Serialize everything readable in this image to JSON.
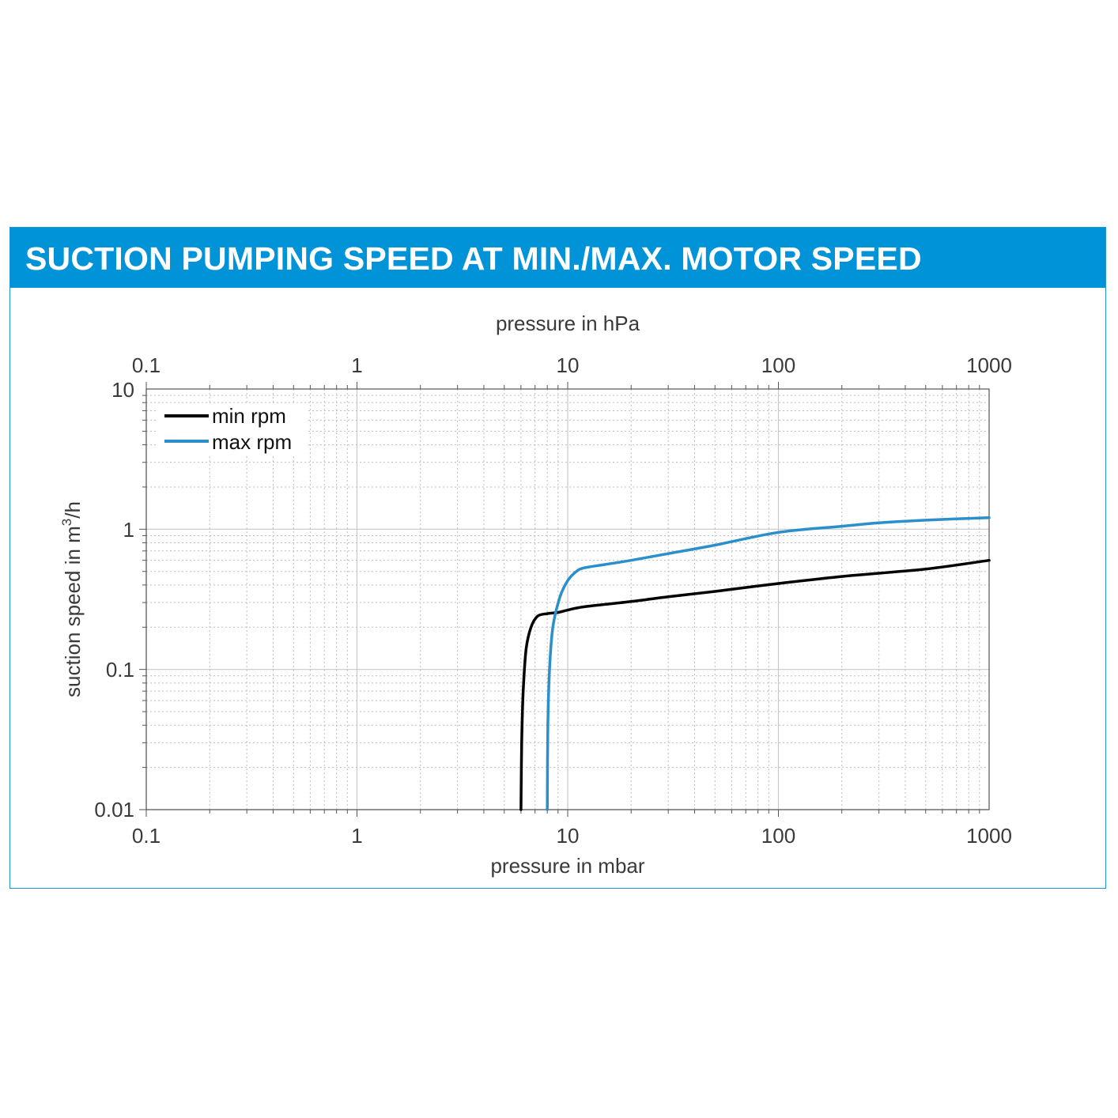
{
  "header": {
    "title": "SUCTION PUMPING SPEED AT MIN./MAX. MOTOR SPEED",
    "background": "#0093d8",
    "text_color": "#ffffff"
  },
  "chart_data": {
    "type": "line",
    "scale": {
      "x": "log",
      "y": "log"
    },
    "grid": true,
    "legend_position": "top-left",
    "xlabel": "pressure in mbar",
    "x2label": "pressure in hPa",
    "ylabel": "suction speed in m³/h",
    "ylabel_base": "suction speed in m",
    "ylabel_sup": "3",
    "ylabel_tail": "/h",
    "xlim": [
      0.1,
      1000
    ],
    "ylim": [
      0.01,
      10
    ],
    "x_ticks": [
      "0.1",
      "1",
      "10",
      "100",
      "1000"
    ],
    "x2_ticks": [
      "0.1",
      "1",
      "10",
      "100",
      "1000"
    ],
    "y_ticks": [
      "0.01",
      "0.1",
      "1",
      "10"
    ],
    "series": [
      {
        "name": "min rpm",
        "color": "#000000",
        "points": [
          [
            6.0,
            0.01
          ],
          [
            6.05,
            0.03
          ],
          [
            6.15,
            0.07
          ],
          [
            6.35,
            0.14
          ],
          [
            6.7,
            0.2
          ],
          [
            7.2,
            0.24
          ],
          [
            8.0,
            0.25
          ],
          [
            9.0,
            0.255
          ],
          [
            10.0,
            0.265
          ],
          [
            12.0,
            0.28
          ],
          [
            20.0,
            0.305
          ],
          [
            30.0,
            0.33
          ],
          [
            50.0,
            0.36
          ],
          [
            100.0,
            0.41
          ],
          [
            200.0,
            0.46
          ],
          [
            500.0,
            0.52
          ],
          [
            1000.0,
            0.6
          ]
        ]
      },
      {
        "name": "max rpm",
        "color": "#2b8fcb",
        "points": [
          [
            8.0,
            0.01
          ],
          [
            8.05,
            0.04
          ],
          [
            8.2,
            0.1
          ],
          [
            8.5,
            0.2
          ],
          [
            9.2,
            0.33
          ],
          [
            10.0,
            0.43
          ],
          [
            11.0,
            0.5
          ],
          [
            12.0,
            0.53
          ],
          [
            15.0,
            0.56
          ],
          [
            20.0,
            0.6
          ],
          [
            30.0,
            0.67
          ],
          [
            50.0,
            0.77
          ],
          [
            100.0,
            0.95
          ],
          [
            200.0,
            1.05
          ],
          [
            300.0,
            1.11
          ],
          [
            500.0,
            1.16
          ],
          [
            1000.0,
            1.21
          ]
        ]
      }
    ]
  }
}
